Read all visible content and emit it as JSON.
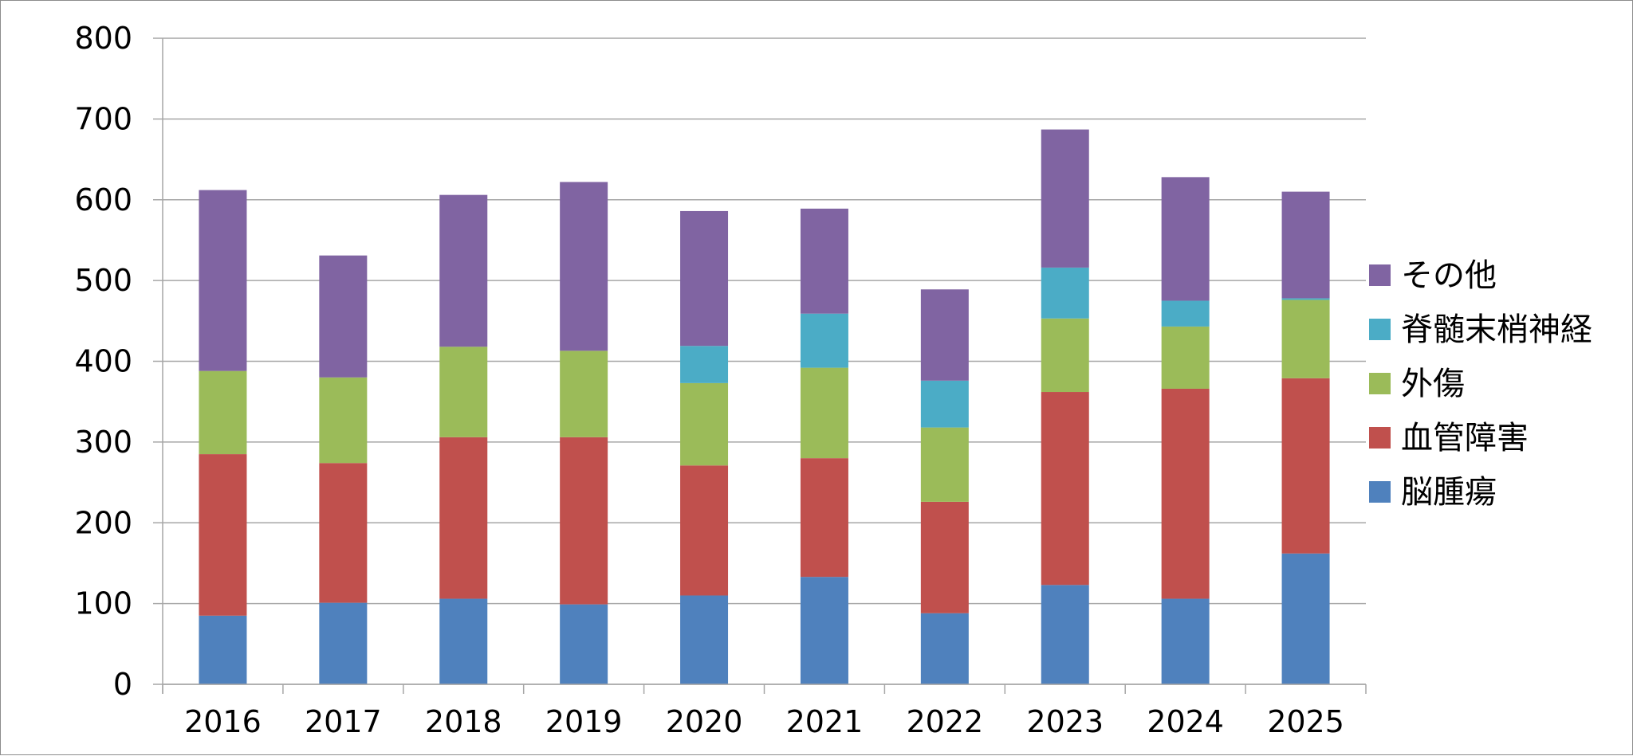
{
  "chart_data": {
    "type": "bar",
    "stacked": true,
    "title": "",
    "xlabel": "",
    "ylabel": "",
    "ylim": [
      0,
      800
    ],
    "yticks": [
      0,
      100,
      200,
      300,
      400,
      500,
      600,
      700,
      800
    ],
    "grid": true,
    "legend_position": "right",
    "categories": [
      "2016",
      "2017",
      "2018",
      "2019",
      "2020",
      "2021",
      "2022",
      "2023",
      "2024",
      "2025"
    ],
    "series": [
      {
        "name": "脳腫瘍",
        "color": "#4f81bd",
        "values": [
          85,
          101,
          106,
          99,
          110,
          133,
          88,
          123,
          106,
          162
        ]
      },
      {
        "name": "血管障害",
        "color": "#c0504d",
        "values": [
          200,
          173,
          200,
          207,
          161,
          147,
          138,
          239,
          260,
          217
        ]
      },
      {
        "name": "外傷",
        "color": "#9bbb59",
        "values": [
          103,
          106,
          112,
          107,
          102,
          112,
          92,
          91,
          77,
          97
        ]
      },
      {
        "name": "脊髄末梢神経",
        "color": "#4bacc6",
        "values": [
          0,
          0,
          0,
          0,
          46,
          67,
          58,
          63,
          32,
          2
        ]
      },
      {
        "name": "その他",
        "color": "#8064a2",
        "values": [
          224,
          151,
          188,
          209,
          167,
          130,
          113,
          171,
          153,
          132
        ]
      }
    ],
    "legend_order": [
      "その他",
      "脊髄末梢神経",
      "外傷",
      "血管障害",
      "脳腫瘍"
    ]
  }
}
